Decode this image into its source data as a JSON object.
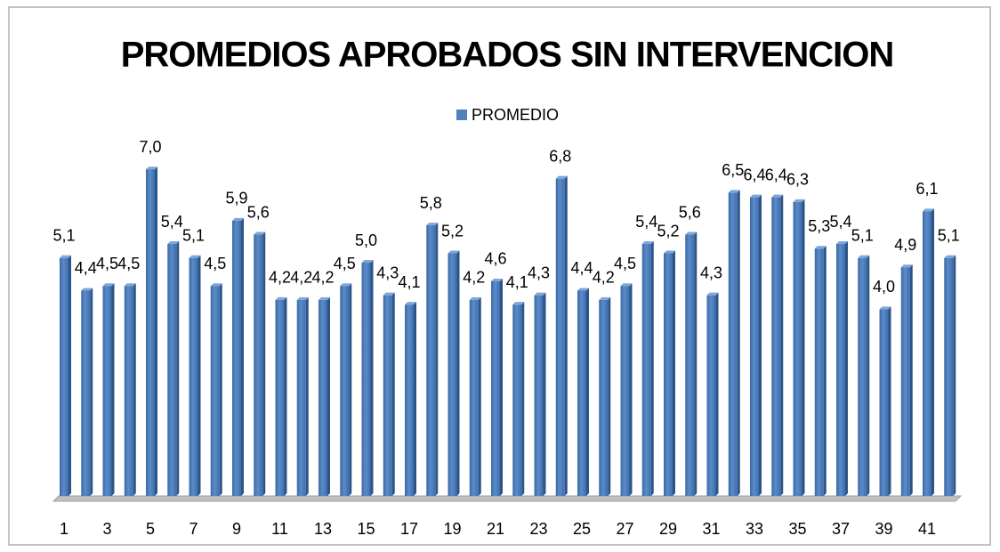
{
  "chart_data": {
    "type": "bar",
    "title": "PROMEDIOS APROBADOS SIN INTERVENCION",
    "legend": "PROMEDIO",
    "color": "#4f81bd",
    "categories": [
      "1",
      null,
      "3",
      null,
      "5",
      null,
      "7",
      null,
      "9",
      null,
      "11",
      null,
      "13",
      null,
      "15",
      null,
      "17",
      null,
      "19",
      null,
      "21",
      null,
      "23",
      null,
      "25",
      null,
      "27",
      null,
      "29",
      null,
      "31",
      null,
      "33",
      null,
      "35",
      null,
      "37",
      null,
      "39",
      null,
      "41",
      null
    ],
    "values": [
      5.1,
      4.4,
      4.5,
      4.5,
      7.0,
      5.4,
      5.1,
      4.5,
      5.9,
      5.6,
      4.2,
      4.2,
      4.2,
      4.5,
      5.0,
      4.3,
      4.1,
      5.8,
      5.2,
      4.2,
      4.6,
      4.1,
      4.3,
      6.8,
      4.4,
      4.2,
      4.5,
      5.4,
      5.2,
      5.6,
      4.3,
      6.5,
      6.4,
      6.4,
      6.3,
      5.3,
      5.4,
      5.1,
      4.0,
      4.9,
      6.1,
      5.1
    ],
    "value_labels": [
      "5,1",
      "4,4",
      "4,5",
      "4,5",
      "7,0",
      "5,4",
      "5,1",
      "4,5",
      "5,9",
      "5,6",
      "4,2",
      "4,2",
      "4,2",
      "4,5",
      "5,0",
      "4,3",
      "4,1",
      "5,8",
      "5,2",
      "4,2",
      "4,6",
      "4,1",
      "4,3",
      "6,8",
      "4,4",
      "4,2",
      "4,5",
      "5,4",
      "5,2",
      "5,6",
      "4,3",
      "6,5",
      "6,4",
      "6,4",
      "6,3",
      "5,3",
      "5,4",
      "5,1",
      "4,0",
      "4,9",
      "6,1",
      "5,1"
    ]
  }
}
